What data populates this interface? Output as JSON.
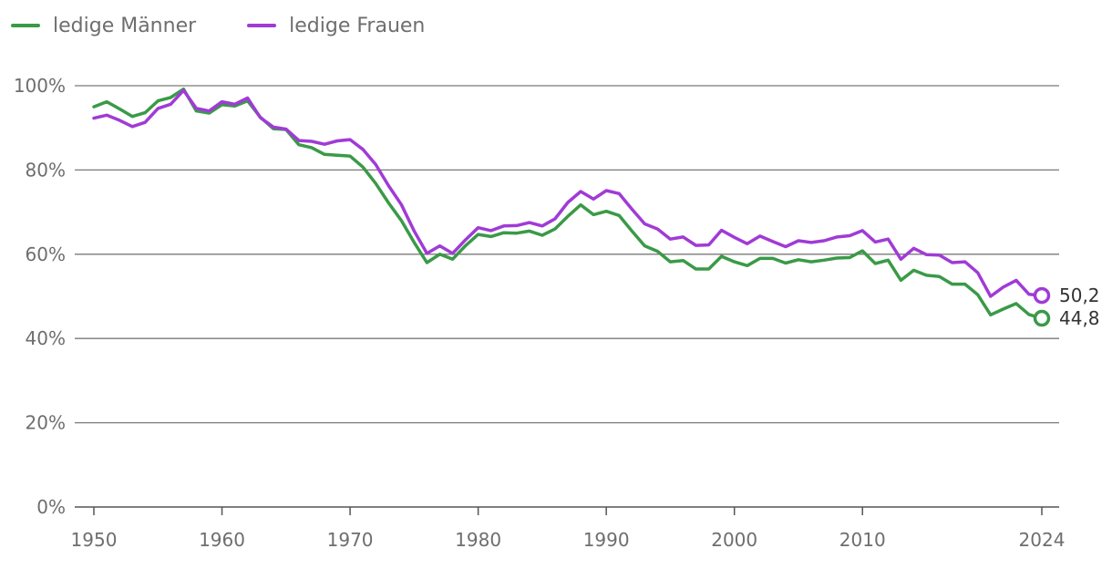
{
  "chart_data": {
    "type": "line",
    "title": "",
    "xlabel": "",
    "ylabel": "",
    "xlim": [
      1950,
      2024
    ],
    "ylim": [
      0,
      100
    ],
    "x_ticks": [
      1950,
      1960,
      1970,
      1980,
      1990,
      2000,
      2010,
      2024
    ],
    "y_ticks": [
      0,
      20,
      40,
      60,
      80,
      100
    ],
    "y_tick_labels": [
      "0%",
      "20%",
      "40%",
      "60%",
      "80%",
      "100%"
    ],
    "legend_position": "top-left",
    "grid": true,
    "x": [
      1950,
      1951,
      1952,
      1953,
      1954,
      1955,
      1956,
      1957,
      1958,
      1959,
      1960,
      1961,
      1962,
      1963,
      1964,
      1965,
      1966,
      1967,
      1968,
      1969,
      1970,
      1971,
      1972,
      1973,
      1974,
      1975,
      1976,
      1977,
      1978,
      1979,
      1980,
      1981,
      1982,
      1983,
      1984,
      1985,
      1986,
      1987,
      1988,
      1989,
      1990,
      1991,
      1992,
      1993,
      1994,
      1995,
      1996,
      1997,
      1998,
      1999,
      2000,
      2001,
      2002,
      2003,
      2004,
      2005,
      2006,
      2007,
      2008,
      2009,
      2010,
      2011,
      2012,
      2013,
      2014,
      2015,
      2016,
      2017,
      2018,
      2019,
      2020,
      2021,
      2022,
      2023,
      2024
    ],
    "series": [
      {
        "name": "ledige Männer",
        "color": "#3a9a47",
        "end_label": "44,8",
        "values": [
          95.0,
          96.2,
          94.5,
          92.7,
          93.6,
          96.4,
          97.2,
          99.2,
          94.0,
          93.5,
          95.5,
          95.2,
          96.4,
          92.5,
          89.8,
          89.6,
          86.0,
          85.3,
          83.7,
          83.5,
          83.3,
          80.7,
          76.8,
          72.2,
          68.0,
          62.8,
          58.0,
          60.0,
          58.8,
          62.0,
          64.7,
          64.2,
          65.1,
          65.0,
          65.5,
          64.5,
          66.0,
          69.0,
          71.7,
          69.4,
          70.2,
          69.2,
          65.5,
          62.0,
          60.7,
          58.2,
          58.5,
          56.5,
          56.5,
          59.5,
          58.2,
          57.3,
          59.0,
          59.0,
          57.9,
          58.7,
          58.2,
          58.6,
          59.1,
          59.2,
          60.8,
          57.8,
          58.6,
          53.8,
          56.2,
          55.0,
          54.7,
          52.9,
          52.9,
          50.4,
          45.6,
          47.0,
          48.3,
          45.7,
          44.8
        ]
      },
      {
        "name": "ledige Frauen",
        "color": "#a03bd6",
        "end_label": "50,2",
        "values": [
          92.3,
          93.0,
          91.8,
          90.3,
          91.3,
          94.6,
          95.6,
          98.9,
          94.6,
          94.0,
          96.2,
          95.6,
          97.1,
          92.4,
          90.2,
          89.7,
          87.0,
          86.8,
          86.1,
          86.9,
          87.2,
          84.9,
          81.3,
          76.3,
          71.8,
          65.5,
          60.2,
          62.0,
          60.2,
          63.4,
          66.3,
          65.6,
          66.7,
          66.8,
          67.5,
          66.7,
          68.4,
          72.3,
          74.9,
          73.1,
          75.1,
          74.4,
          70.7,
          67.2,
          66.0,
          63.6,
          64.1,
          62.1,
          62.2,
          65.7,
          64.0,
          62.5,
          64.3,
          63.0,
          61.8,
          63.2,
          62.8,
          63.2,
          64.1,
          64.4,
          65.6,
          62.9,
          63.6,
          58.8,
          61.4,
          59.9,
          59.8,
          58.0,
          58.2,
          55.6,
          50.0,
          52.2,
          53.8,
          50.5,
          50.2
        ]
      }
    ]
  }
}
